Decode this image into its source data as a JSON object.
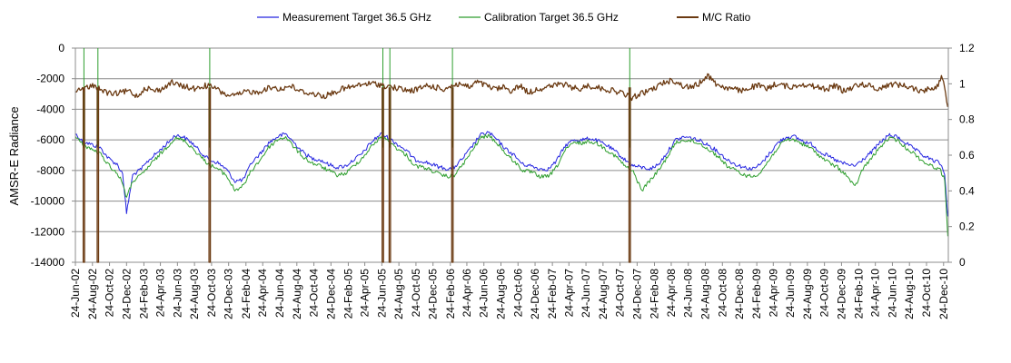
{
  "chart_data": {
    "type": "line",
    "title": "",
    "ylabel": "AMSR-E Radiance",
    "y2label": "",
    "ylim": [
      -14000,
      0
    ],
    "y2lim": [
      0,
      1.2
    ],
    "yticks": [
      0,
      -2000,
      -4000,
      -6000,
      -8000,
      -10000,
      -12000,
      -14000
    ],
    "y2ticks": [
      1.2,
      1,
      0.8,
      0.6,
      0.4,
      0.2,
      0
    ],
    "xrange": [
      "2002-06-24",
      "2011-01-10"
    ],
    "xtick_dates": [
      "2002-06-24",
      "2002-08-24",
      "2002-10-24",
      "2002-12-24",
      "2003-02-24",
      "2003-04-24",
      "2003-06-24",
      "2003-08-24",
      "2003-10-24",
      "2003-12-24",
      "2004-02-24",
      "2004-04-24",
      "2004-06-24",
      "2004-08-24",
      "2004-10-24",
      "2004-12-24",
      "2005-02-24",
      "2005-04-24",
      "2005-06-24",
      "2005-08-24",
      "2005-10-24",
      "2005-12-24",
      "2006-02-24",
      "2006-04-24",
      "2006-06-24",
      "2006-08-24",
      "2006-10-24",
      "2006-12-24",
      "2007-02-24",
      "2007-04-24",
      "2007-06-24",
      "2007-08-24",
      "2007-10-24",
      "2007-12-24",
      "2008-02-24",
      "2008-04-24",
      "2008-06-24",
      "2008-08-24",
      "2008-10-24",
      "2008-12-24",
      "2009-02-24",
      "2009-04-24",
      "2009-06-24",
      "2009-08-24",
      "2009-10-24",
      "2009-12-24",
      "2010-02-24",
      "2010-04-24",
      "2010-06-24",
      "2010-08-24",
      "2010-10-24",
      "2010-12-24"
    ],
    "xtick_labels": [
      "24-Jun-02",
      "24-Aug-02",
      "24-Oct-02",
      "24-Dec-02",
      "24-Feb-03",
      "24-Apr-03",
      "24-Jun-03",
      "24-Aug-03",
      "24-Oct-03",
      "24-Dec-03",
      "24-Feb-04",
      "24-Apr-04",
      "24-Jun-04",
      "24-Aug-04",
      "24-Oct-04",
      "24-Dec-04",
      "24-Feb-05",
      "24-Apr-05",
      "24-Jun-05",
      "24-Aug-05",
      "24-Oct-05",
      "24-Dec-05",
      "24-Feb-06",
      "24-Apr-06",
      "24-Jun-06",
      "24-Aug-06",
      "24-Oct-06",
      "24-Dec-06",
      "24-Feb-07",
      "24-Apr-07",
      "24-Jun-07",
      "24-Aug-07",
      "24-Oct-07",
      "24-Dec-07",
      "24-Feb-08",
      "24-Apr-08",
      "24-Jun-08",
      "24-Aug-08",
      "24-Oct-08",
      "24-Dec-08",
      "24-Feb-09",
      "24-Apr-09",
      "24-Jun-09",
      "24-Aug-09",
      "24-Oct-09",
      "24-Dec-09",
      "24-Feb-10",
      "24-Apr-10",
      "24-Jun-10",
      "24-Aug-10",
      "24-Oct-10",
      "24-Dec-10"
    ],
    "grid": "horizontal",
    "legend_position": "top",
    "series": [
      {
        "name": "Measurement Target 36.5 GHz",
        "axis": "left",
        "color": "#2424e0",
        "x": [
          "2002-06-24",
          "2002-07-20",
          "2002-08-20",
          "2002-09-20",
          "2002-10-20",
          "2002-11-20",
          "2002-12-10",
          "2002-12-24",
          "2003-01-15",
          "2003-02-15",
          "2003-03-15",
          "2003-04-15",
          "2003-05-15",
          "2003-06-15",
          "2003-07-15",
          "2003-08-15",
          "2003-09-15",
          "2003-10-15",
          "2003-11-15",
          "2003-12-15",
          "2004-01-15",
          "2004-02-15",
          "2004-03-15",
          "2004-04-15",
          "2004-05-15",
          "2004-06-15",
          "2004-07-15",
          "2004-08-15",
          "2004-09-15",
          "2004-10-15",
          "2004-11-15",
          "2004-12-15",
          "2005-01-15",
          "2005-02-15",
          "2005-03-15",
          "2005-04-15",
          "2005-05-15",
          "2005-06-20",
          "2005-07-20",
          "2005-08-20",
          "2005-09-20",
          "2005-10-20",
          "2005-11-20",
          "2005-12-20",
          "2006-01-20",
          "2006-02-20",
          "2006-03-10",
          "2006-04-10",
          "2006-05-10",
          "2006-06-10",
          "2006-07-10",
          "2006-08-10",
          "2006-09-10",
          "2006-10-10",
          "2006-11-10",
          "2006-12-10",
          "2007-01-10",
          "2007-02-10",
          "2007-03-10",
          "2007-04-10",
          "2007-05-10",
          "2007-06-10",
          "2007-07-10",
          "2007-08-10",
          "2007-09-10",
          "2007-10-10",
          "2007-11-10",
          "2007-12-10",
          "2008-01-10",
          "2008-02-10",
          "2008-03-10",
          "2008-04-10",
          "2008-05-10",
          "2008-06-10",
          "2008-07-10",
          "2008-08-10",
          "2008-09-10",
          "2008-10-10",
          "2008-11-10",
          "2008-12-10",
          "2009-01-10",
          "2009-02-10",
          "2009-03-10",
          "2009-04-10",
          "2009-05-10",
          "2009-06-10",
          "2009-07-10",
          "2009-08-10",
          "2009-09-10",
          "2009-10-10",
          "2009-11-10",
          "2009-12-10",
          "2010-01-10",
          "2010-02-10",
          "2010-03-10",
          "2010-04-10",
          "2010-05-10",
          "2010-06-10",
          "2010-07-10",
          "2010-08-10",
          "2010-09-10",
          "2010-10-10",
          "2010-11-10",
          "2010-12-10",
          "2010-12-28",
          "2011-01-08"
        ],
        "values": [
          -5600,
          -6100,
          -6300,
          -6500,
          -7200,
          -7600,
          -8200,
          -10800,
          -8300,
          -7900,
          -7300,
          -6800,
          -6300,
          -5700,
          -5800,
          -6200,
          -6800,
          -7300,
          -7500,
          -7900,
          -8700,
          -8600,
          -7500,
          -6900,
          -6200,
          -5800,
          -5600,
          -6200,
          -6800,
          -7200,
          -7300,
          -7600,
          -7800,
          -7700,
          -7300,
          -6900,
          -6200,
          -5600,
          -5900,
          -6300,
          -6700,
          -7300,
          -7400,
          -7600,
          -7800,
          -7900,
          -7800,
          -7200,
          -6500,
          -5700,
          -5500,
          -6000,
          -6600,
          -7000,
          -7600,
          -7700,
          -7900,
          -7900,
          -7400,
          -6400,
          -6000,
          -6000,
          -5900,
          -6100,
          -6400,
          -6800,
          -7300,
          -7700,
          -7800,
          -7900,
          -7600,
          -6800,
          -6000,
          -5800,
          -5900,
          -6100,
          -6400,
          -6800,
          -7300,
          -7600,
          -7800,
          -7900,
          -7600,
          -6900,
          -6200,
          -5800,
          -5800,
          -6100,
          -6300,
          -6800,
          -7100,
          -7400,
          -7600,
          -7700,
          -7300,
          -6800,
          -6200,
          -5700,
          -5800,
          -6200,
          -6600,
          -7000,
          -7300,
          -7500,
          -8200,
          -11000
        ]
      },
      {
        "name": "Calibration Target 36.5 GHz",
        "axis": "left",
        "color": "#2e9e2e",
        "x": [
          "2002-06-24",
          "2002-07-20",
          "2002-08-20",
          "2002-09-20",
          "2002-10-20",
          "2002-11-20",
          "2002-12-10",
          "2002-12-24",
          "2003-01-15",
          "2003-02-15",
          "2003-03-15",
          "2003-04-15",
          "2003-05-15",
          "2003-06-15",
          "2003-07-15",
          "2003-08-15",
          "2003-09-15",
          "2003-10-15",
          "2003-11-15",
          "2003-12-15",
          "2004-01-15",
          "2004-02-15",
          "2004-03-15",
          "2004-04-15",
          "2004-05-15",
          "2004-06-15",
          "2004-07-15",
          "2004-08-15",
          "2004-09-15",
          "2004-10-15",
          "2004-11-15",
          "2004-12-15",
          "2005-01-15",
          "2005-02-15",
          "2005-03-15",
          "2005-04-15",
          "2005-05-15",
          "2005-06-20",
          "2005-07-20",
          "2005-08-20",
          "2005-09-20",
          "2005-10-20",
          "2005-11-20",
          "2005-12-20",
          "2006-01-20",
          "2006-02-20",
          "2006-03-10",
          "2006-04-10",
          "2006-05-10",
          "2006-06-10",
          "2006-07-10",
          "2006-08-10",
          "2006-09-10",
          "2006-10-10",
          "2006-11-10",
          "2006-12-10",
          "2007-01-10",
          "2007-02-10",
          "2007-03-10",
          "2007-04-10",
          "2007-05-10",
          "2007-06-10",
          "2007-07-10",
          "2007-08-10",
          "2007-09-10",
          "2007-10-10",
          "2007-11-10",
          "2007-12-10",
          "2008-01-10",
          "2008-02-10",
          "2008-03-10",
          "2008-04-10",
          "2008-05-10",
          "2008-06-10",
          "2008-07-10",
          "2008-08-10",
          "2008-09-10",
          "2008-10-10",
          "2008-11-10",
          "2008-12-10",
          "2009-01-10",
          "2009-02-10",
          "2009-03-10",
          "2009-04-10",
          "2009-05-10",
          "2009-06-10",
          "2009-07-10",
          "2009-08-10",
          "2009-09-10",
          "2009-10-10",
          "2009-11-10",
          "2009-12-10",
          "2010-01-10",
          "2010-02-10",
          "2010-03-10",
          "2010-04-10",
          "2010-05-10",
          "2010-06-10",
          "2010-07-10",
          "2010-08-10",
          "2010-09-10",
          "2010-10-10",
          "2010-11-10",
          "2010-12-10",
          "2010-12-28",
          "2011-01-08"
        ],
        "values": [
          -5800,
          -6300,
          -6600,
          -6900,
          -7600,
          -8200,
          -8800,
          -9800,
          -8700,
          -8300,
          -7700,
          -7100,
          -6500,
          -5900,
          -6000,
          -6500,
          -7100,
          -7600,
          -7900,
          -8300,
          -9300,
          -9000,
          -8000,
          -7300,
          -6500,
          -6000,
          -5800,
          -6500,
          -7100,
          -7500,
          -7700,
          -8000,
          -8300,
          -8200,
          -7700,
          -7200,
          -6500,
          -5800,
          -6100,
          -6600,
          -7000,
          -7700,
          -7800,
          -8000,
          -8300,
          -8400,
          -8300,
          -7600,
          -6800,
          -5900,
          -5700,
          -6200,
          -6900,
          -7400,
          -8000,
          -8100,
          -8400,
          -8400,
          -7800,
          -6700,
          -6200,
          -6200,
          -6100,
          -6300,
          -6700,
          -7100,
          -7700,
          -8100,
          -9300,
          -8600,
          -8000,
          -7100,
          -6200,
          -6000,
          -6100,
          -6300,
          -6700,
          -7100,
          -7700,
          -8000,
          -8300,
          -8400,
          -8100,
          -7300,
          -6500,
          -6000,
          -6000,
          -6300,
          -6600,
          -7100,
          -7500,
          -7800,
          -8300,
          -9100,
          -7900,
          -7200,
          -6500,
          -5900,
          -6000,
          -6500,
          -6900,
          -7400,
          -7700,
          -7900,
          -8600,
          -12300
        ]
      },
      {
        "name": "M/C Ratio",
        "axis": "right",
        "color": "#6b3a12",
        "x": [
          "2002-06-24",
          "2002-07-15",
          "2002-08-05",
          "2002-09-01",
          "2002-10-01",
          "2002-11-01",
          "2002-12-01",
          "2003-01-01",
          "2003-02-01",
          "2003-03-01",
          "2003-04-01",
          "2003-05-01",
          "2003-06-01",
          "2003-07-01",
          "2003-08-01",
          "2003-09-01",
          "2003-10-01",
          "2003-11-01",
          "2003-12-01",
          "2004-01-01",
          "2004-02-01",
          "2004-03-01",
          "2004-04-01",
          "2004-05-01",
          "2004-06-01",
          "2004-07-01",
          "2004-08-01",
          "2004-09-01",
          "2004-10-01",
          "2004-11-01",
          "2004-12-01",
          "2005-01-01",
          "2005-02-01",
          "2005-03-01",
          "2005-04-01",
          "2005-05-01",
          "2005-06-01",
          "2005-07-01",
          "2005-08-01",
          "2005-09-01",
          "2005-10-01",
          "2005-11-01",
          "2005-12-01",
          "2006-01-01",
          "2006-02-01",
          "2006-03-01",
          "2006-04-01",
          "2006-05-01",
          "2006-06-01",
          "2006-07-01",
          "2006-08-01",
          "2006-09-01",
          "2006-10-01",
          "2006-11-01",
          "2006-12-01",
          "2007-01-01",
          "2007-02-01",
          "2007-03-01",
          "2007-04-01",
          "2007-05-01",
          "2007-06-01",
          "2007-07-01",
          "2007-08-01",
          "2007-09-01",
          "2007-10-01",
          "2007-11-01",
          "2007-12-01",
          "2008-01-01",
          "2008-02-01",
          "2008-03-01",
          "2008-04-01",
          "2008-05-01",
          "2008-06-01",
          "2008-07-01",
          "2008-08-01",
          "2008-09-01",
          "2008-10-01",
          "2008-11-01",
          "2008-12-01",
          "2009-01-01",
          "2009-02-01",
          "2009-03-01",
          "2009-04-01",
          "2009-05-01",
          "2009-06-01",
          "2009-07-01",
          "2009-08-01",
          "2009-09-01",
          "2009-10-01",
          "2009-11-01",
          "2009-12-01",
          "2010-01-01",
          "2010-02-01",
          "2010-03-01",
          "2010-04-01",
          "2010-05-01",
          "2010-06-01",
          "2010-07-01",
          "2010-08-01",
          "2010-09-01",
          "2010-10-01",
          "2010-11-01",
          "2010-12-01",
          "2010-12-20",
          "2011-01-08"
        ],
        "values": [
          0.97,
          0.96,
          0.98,
          0.99,
          0.96,
          0.94,
          0.95,
          0.96,
          0.93,
          0.98,
          0.96,
          0.97,
          1.01,
          0.99,
          0.98,
          0.97,
          0.99,
          0.98,
          0.95,
          0.93,
          0.94,
          0.96,
          0.95,
          0.97,
          0.98,
          0.97,
          0.99,
          0.96,
          0.95,
          0.94,
          0.93,
          0.95,
          0.97,
          0.98,
          0.99,
          1.0,
          1.0,
          0.99,
          0.98,
          0.97,
          0.96,
          0.97,
          0.99,
          0.98,
          0.97,
          0.99,
          1.0,
          0.98,
          1.01,
          0.99,
          0.97,
          0.98,
          0.96,
          0.99,
          0.95,
          0.97,
          0.98,
          0.99,
          1.0,
          0.98,
          0.97,
          0.99,
          0.98,
          0.97,
          0.96,
          0.95,
          0.92,
          0.94,
          0.96,
          0.98,
          1.01,
          1.02,
          0.99,
          0.98,
          1.0,
          1.05,
          1.0,
          0.98,
          0.97,
          0.96,
          0.98,
          0.99,
          0.97,
          1.0,
          0.99,
          0.98,
          1.0,
          0.99,
          0.98,
          0.97,
          0.99,
          0.96,
          0.98,
          1.0,
          0.99,
          0.97,
          0.99,
          1.0,
          0.99,
          0.98,
          0.96,
          0.97,
          0.99,
          1.04,
          0.87
        ]
      }
    ],
    "dropouts": [
      {
        "series": "M/C Ratio",
        "date": "2002-07-22"
      },
      {
        "series": "M/C Ratio",
        "date": "2002-09-10"
      },
      {
        "series": "M/C Ratio",
        "date": "2003-10-15"
      },
      {
        "series": "M/C Ratio",
        "date": "2005-06-25"
      },
      {
        "series": "M/C Ratio",
        "date": "2005-07-20"
      },
      {
        "series": "M/C Ratio",
        "date": "2006-03-01"
      },
      {
        "series": "M/C Ratio",
        "date": "2007-11-25"
      }
    ],
    "spikes": [
      {
        "series": "Calibration Target 36.5 GHz",
        "date": "2002-07-22"
      },
      {
        "series": "Calibration Target 36.5 GHz",
        "date": "2002-09-10"
      },
      {
        "series": "Calibration Target 36.5 GHz",
        "date": "2003-10-15"
      },
      {
        "series": "Calibration Target 36.5 GHz",
        "date": "2005-06-25"
      },
      {
        "series": "Calibration Target 36.5 GHz",
        "date": "2005-07-20"
      },
      {
        "series": "Calibration Target 36.5 GHz",
        "date": "2006-03-01"
      },
      {
        "series": "Calibration Target 36.5 GHz",
        "date": "2007-11-25"
      }
    ]
  }
}
